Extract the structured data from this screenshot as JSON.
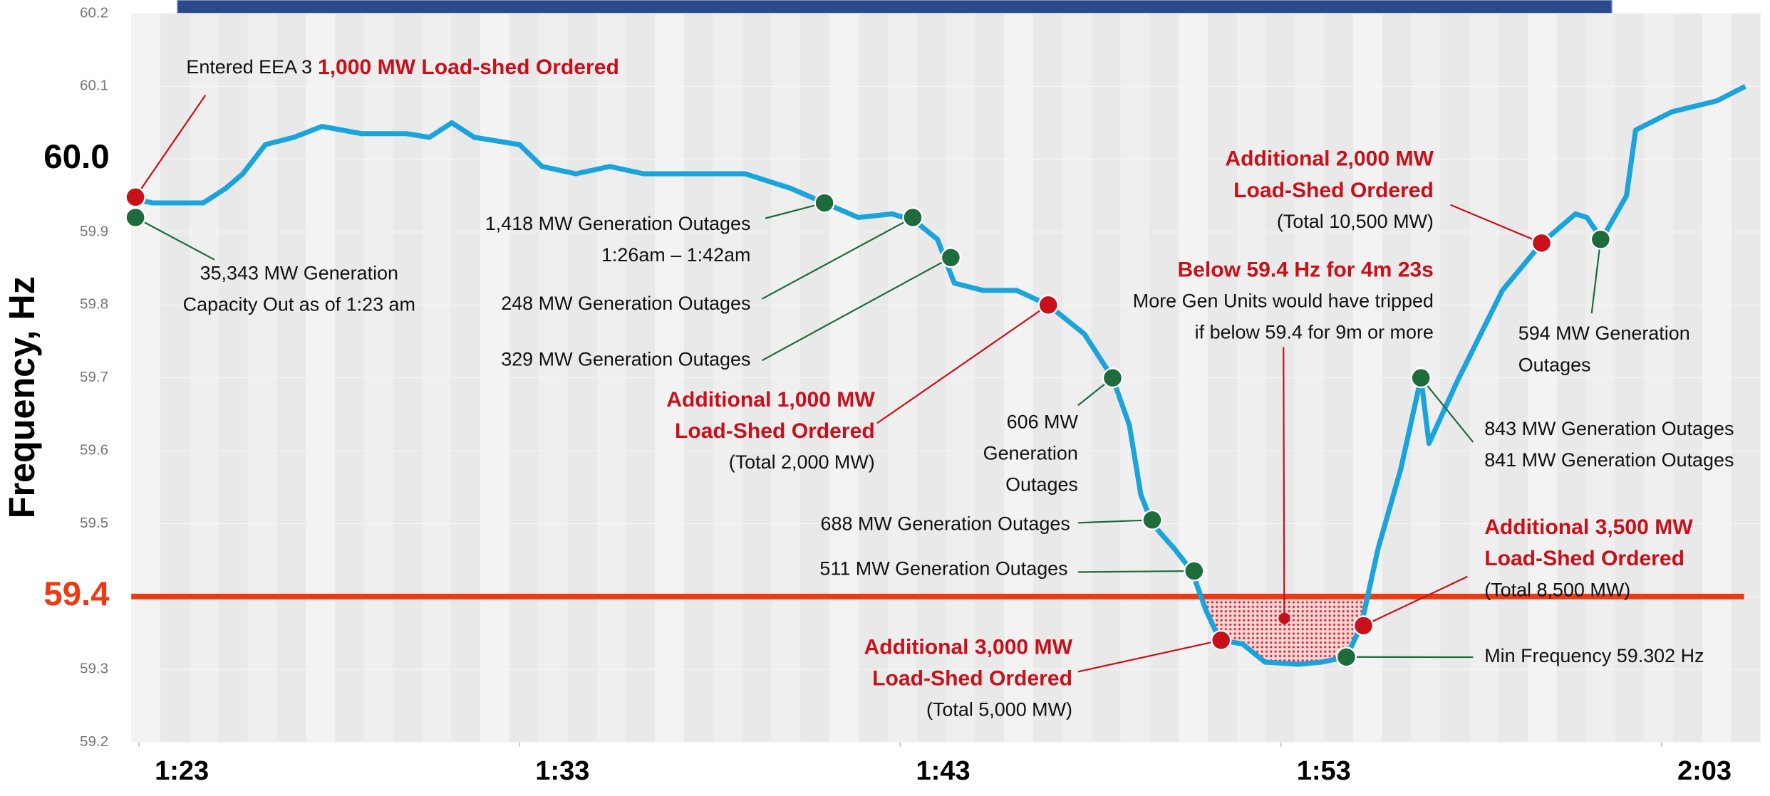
{
  "chart_data": {
    "type": "line",
    "y_axis_label": "Frequency, Hz",
    "x": [
      82.91,
      83.36,
      84.69,
      85.28,
      85.73,
      86.32,
      87.07,
      87.81,
      88.85,
      90.03,
      90.63,
      91.22,
      91.81,
      93.0,
      93.59,
      94.48,
      95.37,
      96.26,
      97.75,
      98.93,
      100.12,
      101.01,
      101.9,
      102.79,
      103.39,
      103.98,
      104.42,
      105.17,
      106.06,
      106.89,
      107.84,
      108.58,
      109.02,
      109.32,
      109.62,
      110.21,
      110.66,
      111.04,
      111.4,
      111.99,
      112.58,
      113.47,
      114.07,
      114.72,
      115.11,
      115.55,
      116.15,
      116.68,
      116.89,
      117.63,
      118.82,
      119.85,
      120.74,
      121.04,
      121.43,
      122.08,
      122.32,
      123.27,
      124.45,
      125.2
    ],
    "series": [
      {
        "color": "#1ba3dc",
        "values": [
          59.945,
          59.94,
          59.94,
          59.96,
          59.98,
          60.02,
          60.03,
          60.045,
          60.035,
          60.035,
          60.03,
          60.05,
          60.03,
          60.02,
          59.99,
          59.98,
          59.99,
          59.98,
          59.98,
          59.98,
          59.96,
          59.94,
          59.92,
          59.925,
          59.915,
          59.89,
          59.83,
          59.82,
          59.82,
          59.8,
          59.76,
          59.7,
          59.635,
          59.54,
          59.5,
          59.465,
          59.435,
          59.38,
          59.34,
          59.335,
          59.31,
          59.307,
          59.31,
          59.317,
          59.36,
          59.465,
          59.575,
          59.7,
          59.61,
          59.695,
          59.82,
          59.885,
          59.925,
          59.92,
          59.89,
          59.95,
          60.04,
          60.065,
          60.08,
          60.1
        ]
      }
    ],
    "xlim": [
      82.8,
      125.6
    ],
    "xticks": [
      {
        "value": 83,
        "label": "1:23"
      },
      {
        "value": 93,
        "label": "1:33"
      },
      {
        "value": 103,
        "label": "1:43"
      },
      {
        "value": 113,
        "label": "1:53"
      },
      {
        "value": 123,
        "label": "2:03"
      }
    ],
    "ylim": [
      59.2,
      60.2
    ],
    "yticks": [
      60.2,
      60.1,
      {
        "value": 60,
        "label": "60.0"
      },
      59.9,
      59.8,
      59.7,
      59.6,
      59.5,
      59.4,
      59.3,
      59.2
    ],
    "bold_yticks": [
      60,
      59.4
    ],
    "threshold": 59.4,
    "threshold_color": "#ee3a12",
    "annotations": [
      {
        "color": "#c8101a",
        "x": 82.91,
        "y": 59.948,
        "note": [
          "Entered EEA 3"
        ],
        "headline": [
          "1,000 MW Load-shed Ordered"
        ]
      },
      {
        "color": "#1e6b3c",
        "x": 82.91,
        "y": 59.92,
        "note": [
          "35,343 MW Generation",
          "Capacity Out as of 1:23 am"
        ]
      },
      {
        "color": "#1e6b3c",
        "x": 101.01,
        "y": 59.94,
        "note": [
          "1,418 MW Generation Outages",
          "1:26am – 1:42am"
        ]
      },
      {
        "color": "#1e6b3c",
        "x": 103.33,
        "y": 59.92,
        "note": [
          "248 MW Generation Outages"
        ]
      },
      {
        "color": "#1e6b3c",
        "x": 104.33,
        "y": 59.865,
        "note": [
          "329 MW Generation Outages"
        ]
      },
      {
        "color": "#c8101a",
        "x": 106.89,
        "y": 59.8,
        "headline": [
          "Additional 1,000 MW",
          "Load-Shed Ordered"
        ],
        "note": [
          "(Total 2,000 MW)"
        ]
      },
      {
        "color": "#1e6b3c",
        "x": 108.58,
        "y": 59.7,
        "note": [
          "606 MW",
          "Generation",
          "Outages"
        ]
      },
      {
        "color": "#1e6b3c",
        "x": 109.62,
        "y": 59.505,
        "note": [
          "688 MW Generation Outages"
        ]
      },
      {
        "color": "#1e6b3c",
        "x": 110.72,
        "y": 59.435,
        "note": [
          "511 MW Generation Outages"
        ]
      },
      {
        "color": "#c8101a",
        "x": 111.43,
        "y": 59.34,
        "headline": [
          "Additional 3,000 MW",
          "Load-Shed Ordered"
        ],
        "note": [
          "(Total 5,000 MW)"
        ]
      },
      {
        "color": "#c8101a",
        "x": 113.09,
        "y": 59.37,
        "headline": [
          "Below 59.4 Hz for 4m 23s"
        ],
        "note": [
          "More Gen Units would have tripped",
          "if below 59.4 for 9m or more"
        ]
      },
      {
        "color": "#1e6b3c",
        "x": 114.72,
        "y": 59.317,
        "note": [
          "Min Frequency 59.302 Hz"
        ]
      },
      {
        "color": "#c8101a",
        "x": 115.17,
        "y": 59.36,
        "headline": [
          "Additional 3,500 MW",
          "Load-Shed Ordered"
        ],
        "note": [
          "(Total 8,500 MW)"
        ]
      },
      {
        "color": "#1e6b3c",
        "x": 116.68,
        "y": 59.7,
        "note": [
          "843 MW Generation Outages",
          "841 MW Generation Outages"
        ]
      },
      {
        "color": "#c8101a",
        "x": 119.85,
        "y": 59.885,
        "headline": [
          "Additional 2,000 MW",
          "Load-Shed Ordered"
        ],
        "note": [
          "(Total 10,500 MW)"
        ]
      },
      {
        "color": "#1e6b3c",
        "x": 121.4,
        "y": 59.89,
        "note": [
          "594 MW Generation",
          "Outages"
        ]
      }
    ]
  }
}
